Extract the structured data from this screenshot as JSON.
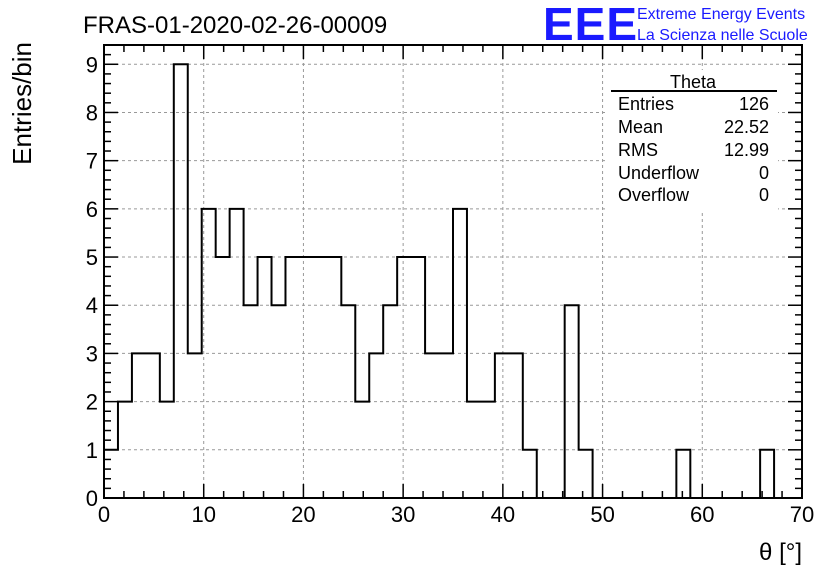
{
  "chart_data": {
    "type": "bar",
    "style": "step-histogram",
    "title": "FRAS-01-2020-02-26-00009",
    "xlabel": "θ [°]",
    "ylabel": "Entries/bin",
    "xlim": [
      0,
      70
    ],
    "ylim": [
      0,
      9.4
    ],
    "x_ticks": [
      0,
      10,
      20,
      30,
      40,
      50,
      60,
      70
    ],
    "y_ticks": [
      0,
      1,
      2,
      3,
      4,
      5,
      6,
      7,
      8,
      9
    ],
    "grid": true,
    "bin_width": 1.4,
    "bin_edges_start": 0,
    "values": [
      1,
      2,
      3,
      3,
      2,
      9,
      3,
      6,
      5,
      6,
      4,
      5,
      4,
      5,
      5,
      5,
      5,
      4,
      2,
      3,
      4,
      5,
      5,
      3,
      3,
      6,
      2,
      2,
      3,
      3,
      1,
      0,
      0,
      4,
      1,
      0,
      0,
      0,
      0,
      0,
      0,
      1,
      0,
      0,
      0,
      0,
      0,
      1,
      0,
      0
    ],
    "line_color": "#000000",
    "grid_color": "#999999",
    "stats_box": {
      "title": "Theta",
      "rows": [
        {
          "label": "Entries",
          "value": "126"
        },
        {
          "label": "Mean",
          "value": "22.52"
        },
        {
          "label": "RMS",
          "value": "12.99"
        },
        {
          "label": "Underflow",
          "value": "0"
        },
        {
          "label": "Overflow",
          "value": "0"
        }
      ]
    }
  },
  "logo": {
    "mark": "EEE",
    "line1": "Extreme Energy Events",
    "line2": "La Scienza nelle Scuole",
    "color": "#1a1aff"
  }
}
